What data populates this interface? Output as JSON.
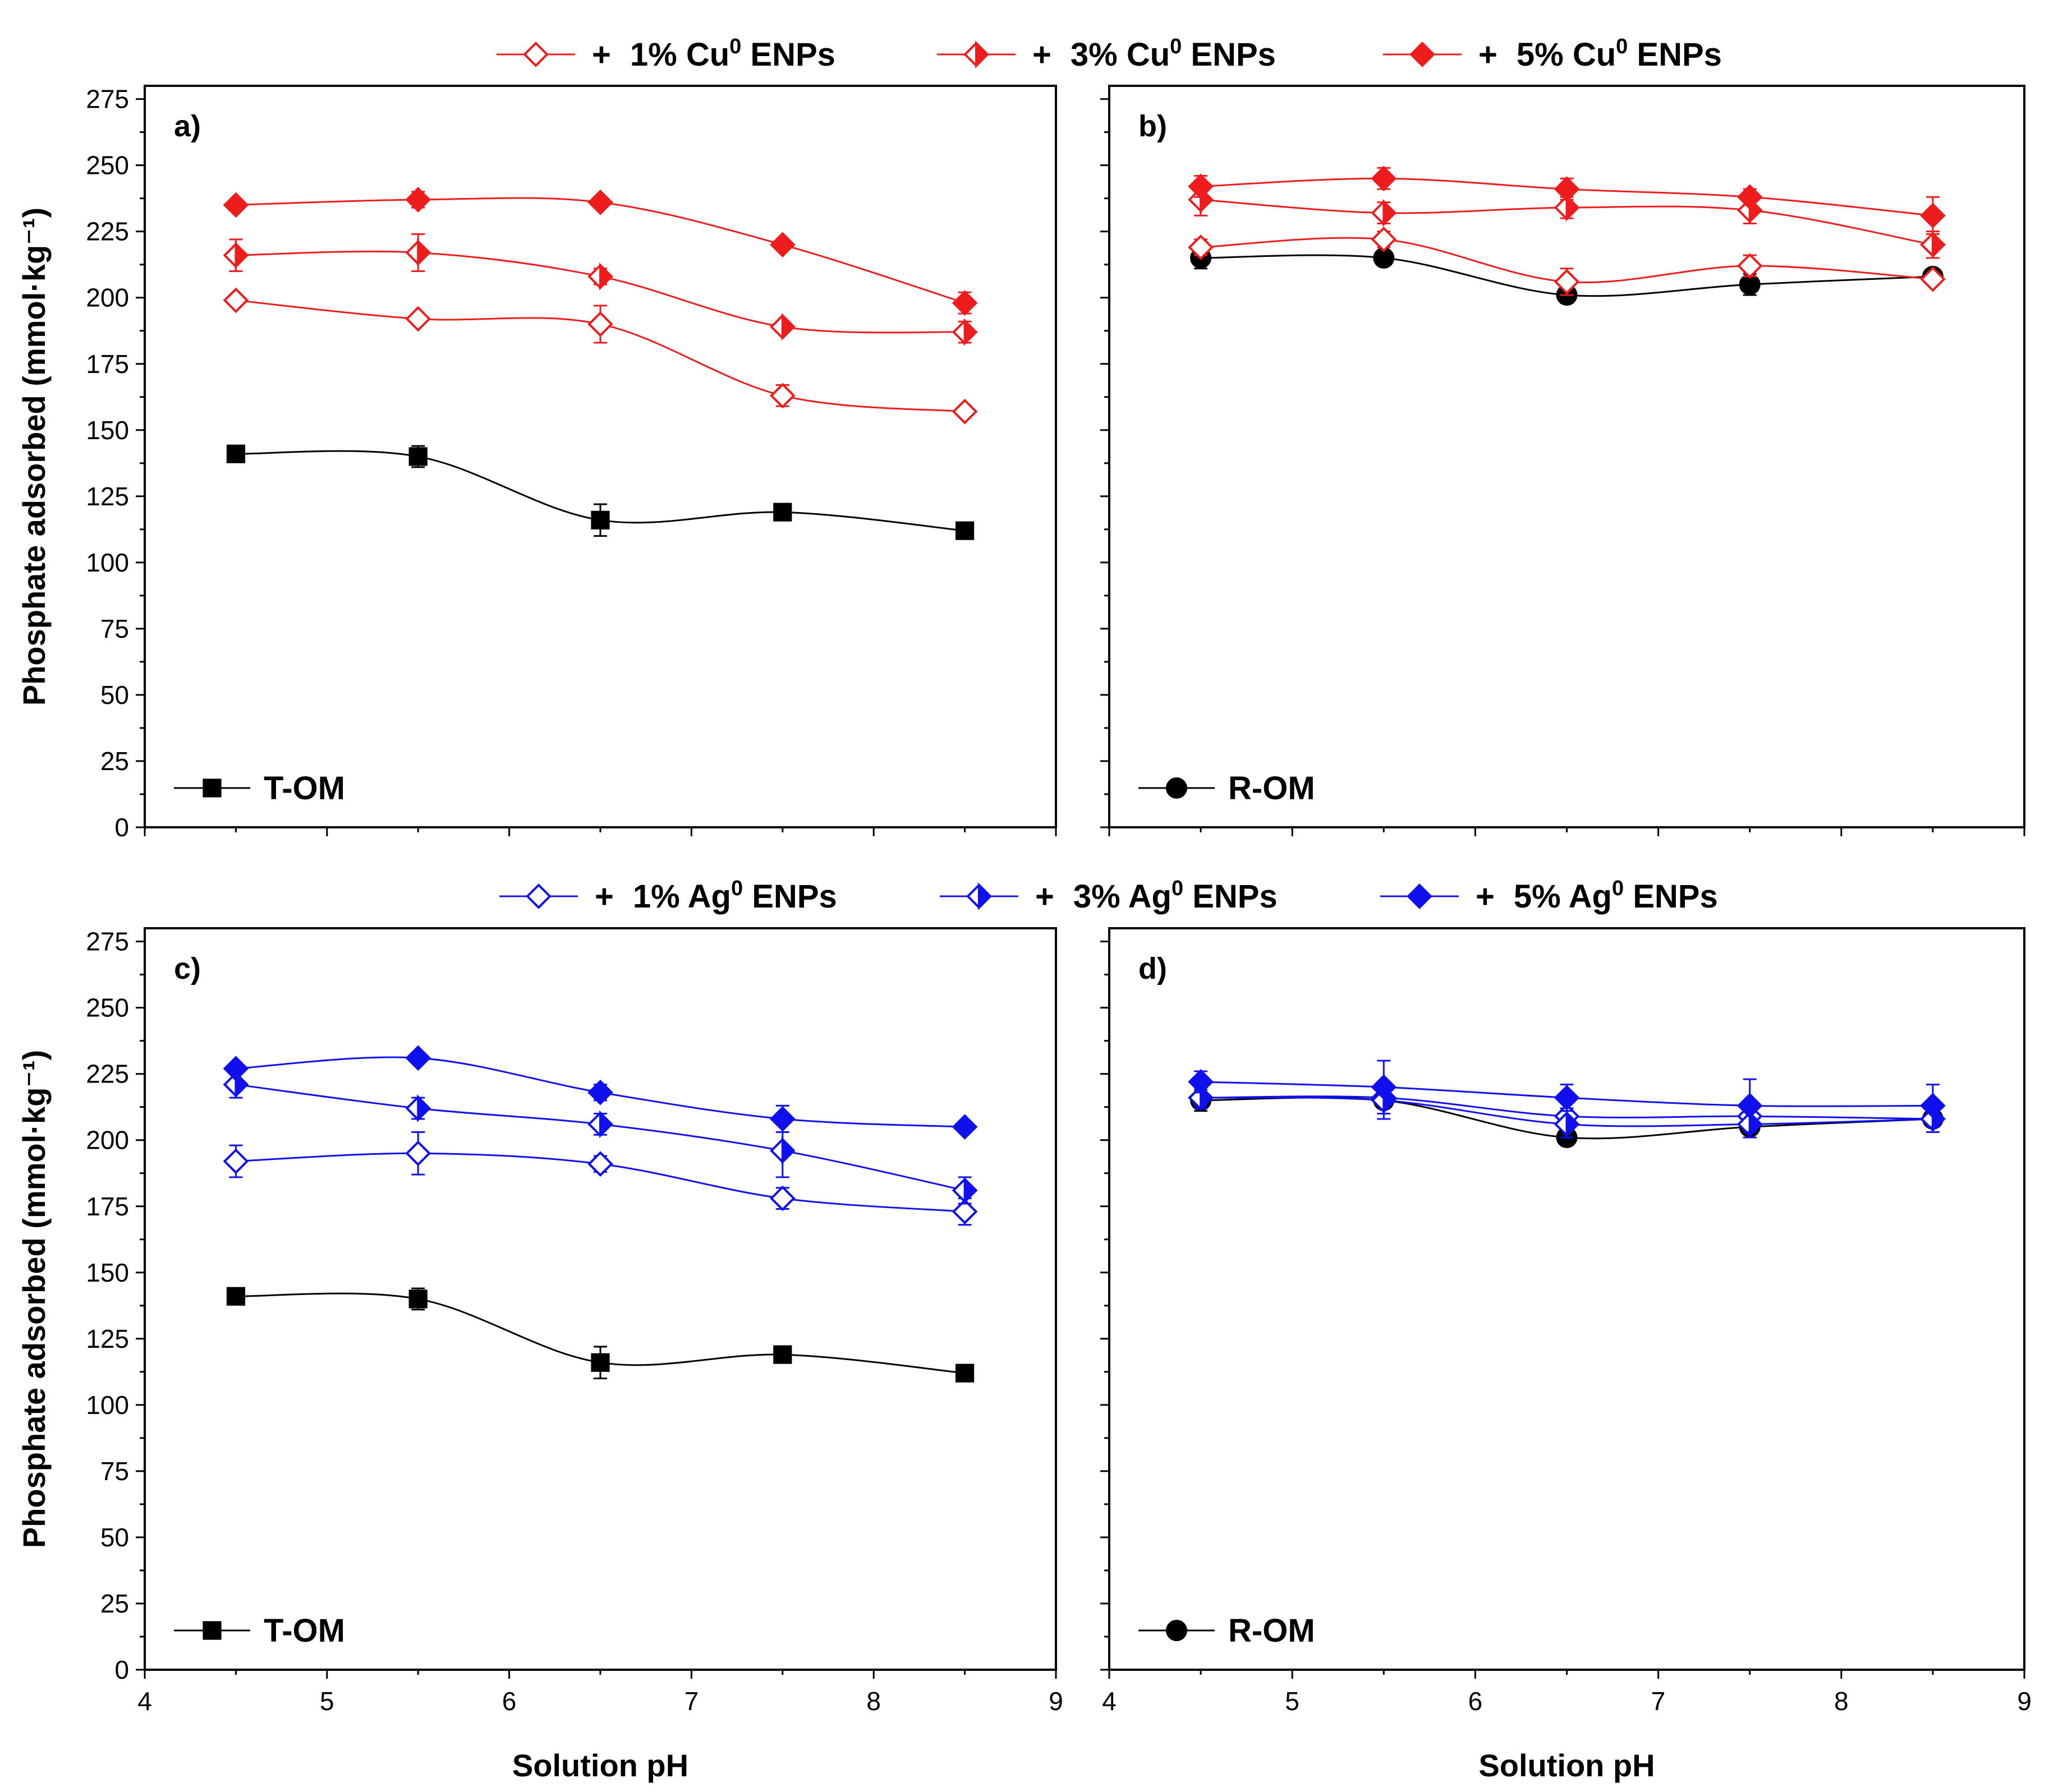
{
  "chart_data": [
    {
      "panel": "a)",
      "type": "line",
      "xlabel": "",
      "ylabel": "Phosphate adsorbed (mmol·kg⁻¹)",
      "xlim": [
        4,
        9
      ],
      "ylim": [
        0,
        280
      ],
      "xticks": [
        4,
        5,
        6,
        7,
        8,
        9
      ],
      "yticks": [
        0,
        25,
        50,
        75,
        100,
        125,
        150,
        175,
        200,
        225,
        250,
        275
      ],
      "x_tick_labels_shown": false,
      "legend_inside": "bottom-left",
      "series": [
        {
          "name": "T-OM",
          "color": "#000000",
          "marker": "square",
          "x": [
            4.5,
            5.5,
            6.5,
            7.5,
            8.5
          ],
          "y": [
            141,
            140,
            116,
            119,
            112
          ],
          "err": [
            2,
            4,
            6,
            2,
            2
          ]
        },
        {
          "name": "+ 1% Cu0 ENPs",
          "color": "#ee1c1c",
          "marker": "diamond-open",
          "x": [
            4.5,
            5.5,
            6.5,
            7.5,
            8.5
          ],
          "y": [
            199,
            192,
            190,
            163,
            157
          ],
          "err": [
            2,
            2,
            7,
            4,
            2
          ]
        },
        {
          "name": "+ 3% Cu0 ENPs",
          "color": "#ee1c1c",
          "marker": "diamond-half",
          "x": [
            4.5,
            5.5,
            6.5,
            7.5,
            8.5
          ],
          "y": [
            216,
            217,
            208,
            189,
            187
          ],
          "err": [
            6,
            7,
            3,
            2,
            4
          ]
        },
        {
          "name": "+ 5% Cu0 ENPs",
          "color": "#ee1c1c",
          "marker": "diamond-filled",
          "x": [
            4.5,
            5.5,
            6.5,
            7.5,
            8.5
          ],
          "y": [
            235,
            237,
            236,
            220,
            198
          ],
          "err": [
            2,
            3,
            2,
            2,
            4
          ]
        }
      ]
    },
    {
      "panel": "b)",
      "type": "line",
      "xlabel": "",
      "ylabel": "",
      "xlim": [
        4,
        9
      ],
      "ylim": [
        0,
        280
      ],
      "xticks": [
        4,
        5,
        6,
        7,
        8,
        9
      ],
      "yticks": [
        0,
        25,
        50,
        75,
        100,
        125,
        150,
        175,
        200,
        225,
        250,
        275
      ],
      "x_tick_labels_shown": false,
      "legend_inside": "bottom-left",
      "series": [
        {
          "name": "R-OM",
          "color": "#000000",
          "marker": "circle",
          "x": [
            4.5,
            5.5,
            6.5,
            7.5,
            8.5
          ],
          "y": [
            215,
            215,
            201,
            205,
            208
          ],
          "err": [
            4,
            2,
            3,
            4,
            2
          ]
        },
        {
          "name": "+ 1% Cu0 ENPs",
          "color": "#ee1c1c",
          "marker": "diamond-open",
          "x": [
            4.5,
            5.5,
            6.5,
            7.5,
            8.5
          ],
          "y": [
            219,
            222,
            206,
            212,
            207
          ],
          "err": [
            3,
            3,
            5,
            4,
            2
          ]
        },
        {
          "name": "+ 3% Cu0 ENPs",
          "color": "#ee1c1c",
          "marker": "diamond-half",
          "x": [
            4.5,
            5.5,
            6.5,
            7.5,
            8.5
          ],
          "y": [
            237,
            232,
            234,
            233,
            220
          ],
          "err": [
            6,
            4,
            4,
            5,
            5
          ]
        },
        {
          "name": "+ 5% Cu0 ENPs",
          "color": "#ee1c1c",
          "marker": "diamond-filled",
          "x": [
            4.5,
            5.5,
            6.5,
            7.5,
            8.5
          ],
          "y": [
            242,
            245,
            241,
            238,
            231
          ],
          "err": [
            4,
            4,
            4,
            3,
            7
          ]
        }
      ]
    },
    {
      "panel": "c)",
      "type": "line",
      "xlabel": "Solution pH",
      "ylabel": "Phosphate adsorbed (mmol·kg⁻¹)",
      "xlim": [
        4,
        9
      ],
      "ylim": [
        0,
        280
      ],
      "xticks": [
        4,
        5,
        6,
        7,
        8,
        9
      ],
      "yticks": [
        0,
        25,
        50,
        75,
        100,
        125,
        150,
        175,
        200,
        225,
        250,
        275
      ],
      "x_tick_labels_shown": true,
      "legend_inside": "bottom-left",
      "series": [
        {
          "name": "T-OM",
          "color": "#000000",
          "marker": "square",
          "x": [
            4.5,
            5.5,
            6.5,
            7.5,
            8.5
          ],
          "y": [
            141,
            140,
            116,
            119,
            112
          ],
          "err": [
            2,
            4,
            6,
            2,
            2
          ]
        },
        {
          "name": "+ 1% Ag0 ENPs",
          "color": "#1010ee",
          "marker": "diamond-open",
          "x": [
            4.5,
            5.5,
            6.5,
            7.5,
            8.5
          ],
          "y": [
            192,
            195,
            191,
            178,
            173
          ],
          "err": [
            6,
            8,
            3,
            4,
            5
          ]
        },
        {
          "name": "+ 3% Ag0 ENPs",
          "color": "#1010ee",
          "marker": "diamond-half",
          "x": [
            4.5,
            5.5,
            6.5,
            7.5,
            8.5
          ],
          "y": [
            221,
            212,
            206,
            196,
            181
          ],
          "err": [
            5,
            4,
            4,
            10,
            5
          ]
        },
        {
          "name": "+ 5% Ag0 ENPs",
          "color": "#1010ee",
          "marker": "diamond-filled",
          "x": [
            4.5,
            5.5,
            6.5,
            7.5,
            8.5
          ],
          "y": [
            227,
            231,
            218,
            208,
            205
          ],
          "err": [
            2,
            2,
            3,
            5,
            2
          ]
        }
      ]
    },
    {
      "panel": "d)",
      "type": "line",
      "xlabel": "Solution pH",
      "ylabel": "",
      "xlim": [
        4,
        9
      ],
      "ylim": [
        0,
        280
      ],
      "xticks": [
        4,
        5,
        6,
        7,
        8,
        9
      ],
      "yticks": [
        0,
        25,
        50,
        75,
        100,
        125,
        150,
        175,
        200,
        225,
        250,
        275
      ],
      "x_tick_labels_shown": true,
      "legend_inside": "bottom-left",
      "series": [
        {
          "name": "R-OM",
          "color": "#000000",
          "marker": "circle",
          "x": [
            4.5,
            5.5,
            6.5,
            7.5,
            8.5
          ],
          "y": [
            215,
            215,
            201,
            205,
            208
          ],
          "err": [
            4,
            2,
            3,
            4,
            2
          ]
        },
        {
          "name": "+ 1% Ag0 ENPs",
          "color": "#1010ee",
          "marker": "diamond-open",
          "x": [
            4.5,
            5.5,
            6.5,
            7.5,
            8.5
          ],
          "y": [
            216,
            216,
            209,
            209,
            208
          ],
          "err": [
            3,
            3,
            3,
            3,
            3
          ]
        },
        {
          "name": "+ 3% Ag0 ENPs",
          "color": "#1010ee",
          "marker": "diamond-half",
          "x": [
            4.5,
            5.5,
            6.5,
            7.5,
            8.5
          ],
          "y": [
            216,
            215,
            206,
            206,
            208
          ],
          "err": [
            4,
            7,
            5,
            5,
            5
          ]
        },
        {
          "name": "+ 5% Ag0 ENPs",
          "color": "#1010ee",
          "marker": "diamond-filled",
          "x": [
            4.5,
            5.5,
            6.5,
            7.5,
            8.5
          ],
          "y": [
            222,
            220,
            216,
            213,
            213
          ],
          "err": [
            4,
            10,
            5,
            10,
            8
          ]
        }
      ]
    }
  ],
  "legends": {
    "cu": {
      "color": "#ee1c1c",
      "items": [
        {
          "plus": "+",
          "text": "1% Cu",
          "sup": "0",
          "suffix": " ENPs",
          "marker": "diamond-open"
        },
        {
          "plus": "+",
          "text": "3% Cu",
          "sup": "0",
          "suffix": " ENPs",
          "marker": "diamond-half"
        },
        {
          "plus": "+",
          "text": "5% Cu",
          "sup": "0",
          "suffix": " ENPs",
          "marker": "diamond-filled"
        }
      ]
    },
    "ag": {
      "color": "#1010ee",
      "items": [
        {
          "plus": "+",
          "text": "1% Ag",
          "sup": "0",
          "suffix": " ENPs",
          "marker": "diamond-open"
        },
        {
          "plus": "+",
          "text": "3% Ag",
          "sup": "0",
          "suffix": " ENPs",
          "marker": "diamond-half"
        },
        {
          "plus": "+",
          "text": "5% Ag",
          "sup": "0",
          "suffix": " ENPs",
          "marker": "diamond-filled"
        }
      ]
    }
  }
}
